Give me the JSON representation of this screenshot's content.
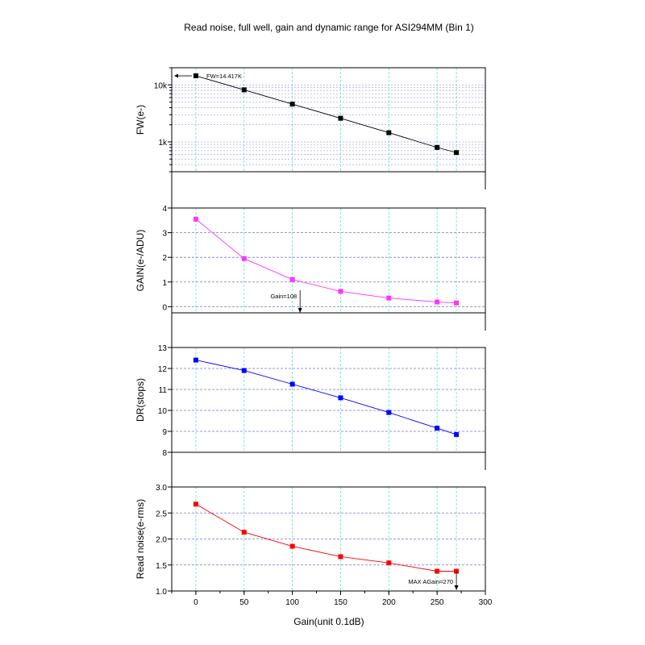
{
  "title": "Read noise, full well, gain and dynamic range for ASI294MM (Bin 1)",
  "chart_data": {
    "type": "line",
    "x": [
      0,
      50,
      100,
      150,
      200,
      250,
      270
    ],
    "xlabel": "Gain(unit 0.1dB)",
    "xlim": [
      -25,
      300
    ],
    "xticks": [
      "0",
      "50",
      "100",
      "150",
      "200",
      "250",
      "300"
    ],
    "panels": [
      {
        "id": "fw",
        "ylabel": "FW(e-)",
        "scale": "log",
        "ylim": [
          300,
          20000
        ],
        "yticks": [
          "1k",
          "10k"
        ],
        "color": "#000000",
        "values": [
          14417,
          8200,
          4600,
          2600,
          1450,
          800,
          650
        ],
        "annotation": "FW=14.417K"
      },
      {
        "id": "gain",
        "ylabel": "GAIN(e-/ADU)",
        "scale": "linear",
        "ylim": [
          -0.25,
          4
        ],
        "yticks": [
          "0",
          "1",
          "2",
          "3",
          "4"
        ],
        "color": "#ff33ff",
        "values": [
          3.55,
          1.95,
          1.1,
          0.62,
          0.35,
          0.19,
          0.15
        ],
        "annotation": "Gain=108"
      },
      {
        "id": "dr",
        "ylabel": "DR(stops)",
        "scale": "linear",
        "ylim": [
          8,
          13
        ],
        "yticks": [
          "8",
          "9",
          "10",
          "11",
          "12",
          "13"
        ],
        "color": "#0000ff",
        "values": [
          12.4,
          11.9,
          11.25,
          10.6,
          9.9,
          9.15,
          8.85
        ]
      },
      {
        "id": "rn",
        "ylabel": "Read noise(e-rms)",
        "scale": "linear",
        "ylim": [
          1.0,
          3.0
        ],
        "yticks": [
          "1.0",
          "1.5",
          "2.0",
          "2.5",
          "3.0"
        ],
        "color": "#ff0000",
        "values": [
          2.67,
          2.13,
          1.86,
          1.66,
          1.54,
          1.38,
          1.38
        ],
        "annotation": "MAX AGain=270"
      }
    ]
  }
}
